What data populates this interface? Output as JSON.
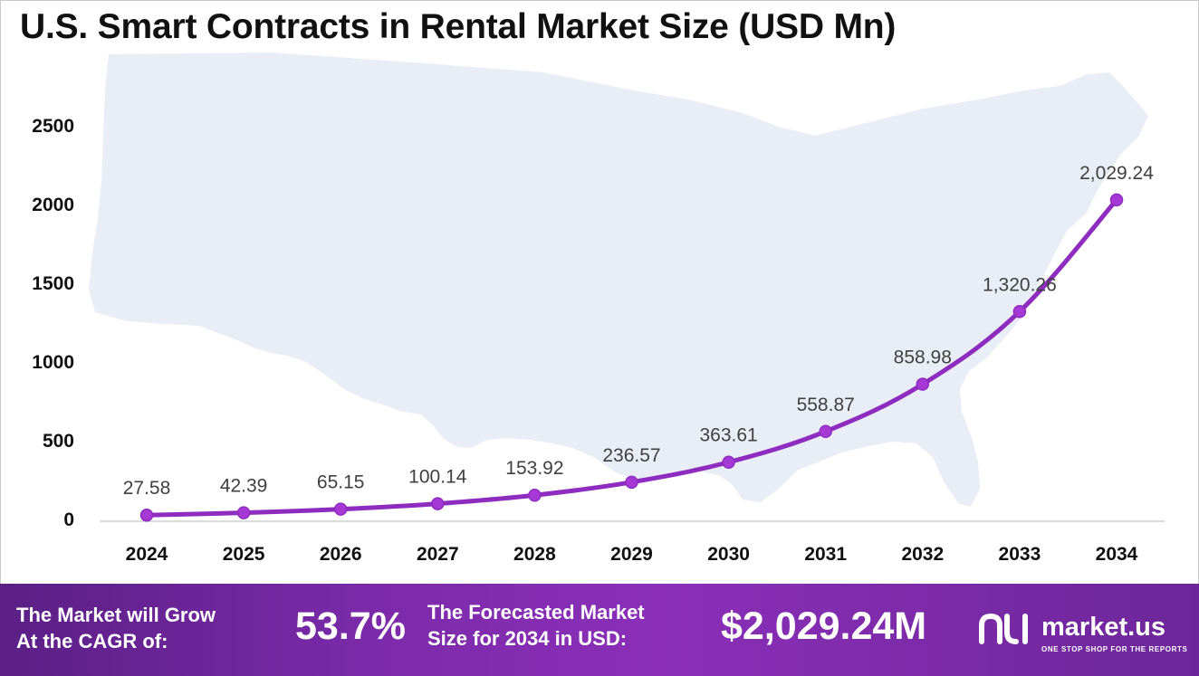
{
  "title": "U.S. Smart Contracts in Rental Market Size (USD Mn)",
  "colors": {
    "line": "#8e2cc0",
    "marker": "#a638d6",
    "map": "#e9eef6",
    "axis": "#d0d0d0"
  },
  "chart_data": {
    "type": "line",
    "title": "U.S. Smart Contracts in Rental Market Size (USD Mn)",
    "xlabel": "",
    "ylabel": "",
    "categories": [
      "2024",
      "2025",
      "2026",
      "2027",
      "2028",
      "2029",
      "2030",
      "2031",
      "2032",
      "2033",
      "2034"
    ],
    "series": [
      {
        "name": "Market Size (USD Mn)",
        "values": [
          27.58,
          42.39,
          65.15,
          100.14,
          153.92,
          236.57,
          363.61,
          558.87,
          858.98,
          1320.26,
          2029.24
        ]
      }
    ],
    "data_labels": [
      "27.58",
      "42.39",
      "65.15",
      "100.14",
      "153.92",
      "236.57",
      "363.61",
      "558.87",
      "858.98",
      "1,320.26",
      "2,029.24"
    ],
    "y_ticks": [
      0,
      500,
      1000,
      1500,
      2000,
      2500
    ],
    "ylim": [
      0,
      2500
    ],
    "grid": false,
    "legend": "none"
  },
  "footer": {
    "cagr_label_line1": "The Market will Grow",
    "cagr_label_line2": "At the CAGR of:",
    "cagr_value": "53.7%",
    "forecast_label_line1": "The Forecasted Market",
    "forecast_label_line2": "Size for 2034 in USD:",
    "forecast_value": "$2,029.24M",
    "brand_name": "market.us",
    "brand_tagline": "ONE STOP SHOP FOR THE REPORTS"
  }
}
